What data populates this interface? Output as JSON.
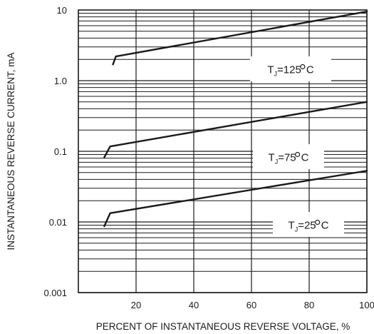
{
  "chart_data": {
    "type": "line",
    "title": "",
    "xlabel": "PERCENT OF INSTANTANEOUS REVERSE VOLTAGE, %",
    "ylabel": "INSTANTANEOUS REVERSE CURRENT, mA",
    "xlim": [
      0,
      100
    ],
    "ylim": [
      0.001,
      10
    ],
    "yscale": "log",
    "grid": true,
    "x_ticks": [
      20,
      40,
      60,
      80,
      100
    ],
    "x_tick_labels": [
      "20",
      "40",
      "60",
      "80",
      "100"
    ],
    "y_ticks": [
      0.001,
      0.01,
      0.1,
      1.0,
      10
    ],
    "y_tick_labels": [
      "0.001",
      "0.01",
      "0.1",
      "1.0",
      "10"
    ],
    "series": [
      {
        "name": "TJ=125°C",
        "label": {
          "base": "T",
          "sub": "J",
          "rest": "=125",
          "unit": "C"
        },
        "x": [
          12,
          13,
          100
        ],
        "y": [
          1.7,
          2.2,
          9.5
        ]
      },
      {
        "name": "TJ=75°C",
        "label": {
          "base": "T",
          "sub": "J",
          "rest": "=75",
          "unit": "C"
        },
        "x": [
          9,
          11,
          100
        ],
        "y": [
          0.082,
          0.117,
          0.5
        ]
      },
      {
        "name": "TJ=25°C",
        "label": {
          "base": "T",
          "sub": "J",
          "rest": "=25",
          "unit": "C"
        },
        "x": [
          9,
          11,
          100
        ],
        "y": [
          0.0087,
          0.0133,
          0.053
        ]
      }
    ],
    "colors": {
      "line": "#1a1a1a",
      "grid": "#1a1a1a",
      "background": "#ffffff"
    }
  }
}
